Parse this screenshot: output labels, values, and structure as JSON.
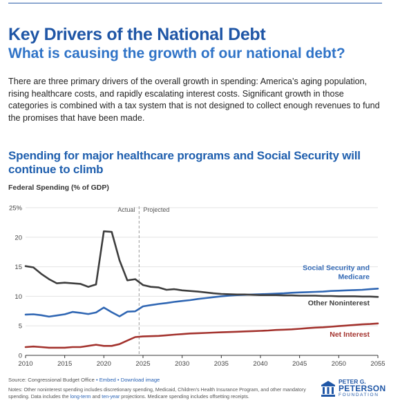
{
  "header": {
    "title": "Key Drivers of the National Debt",
    "subtitle": "What is causing the growth of our national debt?"
  },
  "intro": "There are three primary drivers of the overall growth in spending: America’s aging population, rising healthcare costs, and rapidly escalating interest costs. Significant growth in those categories is combined with a tax system that is not designed to collect enough revenues to fund the promises that have been made.",
  "chart_heading": "Spending for major healthcare programs and Social Security will continue to climb",
  "chart_data": {
    "type": "line",
    "ylabel": "Federal Spending (% of GDP)",
    "ylim": [
      0,
      25
    ],
    "xlim": [
      2010,
      2055
    ],
    "x_ticks": [
      "2010",
      "2015",
      "2020",
      "2025",
      "2030",
      "2035",
      "2040",
      "2045",
      "2050",
      "2055"
    ],
    "y_ticks": [
      "25%",
      "20",
      "15",
      "10",
      "5",
      "0"
    ],
    "divider_year": 2024.5,
    "divider_labels": {
      "left": "Actual",
      "right": "Projected"
    },
    "grid": "horizontal",
    "series": [
      {
        "name": "Social Security and Medicare",
        "label_lines": [
          "Social Security and",
          "Medicare"
        ],
        "color": "#2f66b3",
        "x": [
          2010,
          2011,
          2012,
          2013,
          2014,
          2015,
          2016,
          2017,
          2018,
          2019,
          2020,
          2021,
          2022,
          2023,
          2024,
          2025,
          2026,
          2027,
          2028,
          2029,
          2030,
          2031,
          2032,
          2033,
          2034,
          2035,
          2036,
          2037,
          2038,
          2039,
          2040,
          2041,
          2042,
          2043,
          2044,
          2045,
          2046,
          2047,
          2048,
          2049,
          2050,
          2051,
          2052,
          2053,
          2054,
          2055
        ],
        "values": [
          6.9,
          6.95,
          6.8,
          6.55,
          6.75,
          6.95,
          7.35,
          7.2,
          7.0,
          7.25,
          8.1,
          7.3,
          6.6,
          7.4,
          7.45,
          8.3,
          8.5,
          8.7,
          8.85,
          9.05,
          9.2,
          9.35,
          9.55,
          9.7,
          9.85,
          10.0,
          10.1,
          10.2,
          10.25,
          10.3,
          10.35,
          10.4,
          10.45,
          10.5,
          10.6,
          10.65,
          10.7,
          10.75,
          10.8,
          10.9,
          10.95,
          11.0,
          11.05,
          11.1,
          11.2,
          11.3
        ]
      },
      {
        "name": "Other Noninterest",
        "label_lines": [
          "Other Noninterest"
        ],
        "color": "#3d3d3d",
        "x": [
          2010,
          2011,
          2012,
          2013,
          2014,
          2015,
          2016,
          2017,
          2018,
          2019,
          2020,
          2021,
          2022,
          2023,
          2024,
          2025,
          2026,
          2027,
          2028,
          2029,
          2030,
          2031,
          2032,
          2033,
          2034,
          2035,
          2036,
          2037,
          2038,
          2039,
          2040,
          2041,
          2042,
          2043,
          2044,
          2045,
          2046,
          2047,
          2048,
          2049,
          2050,
          2051,
          2052,
          2053,
          2054,
          2055
        ],
        "values": [
          15.1,
          14.9,
          13.8,
          12.9,
          12.2,
          12.3,
          12.2,
          12.1,
          11.6,
          12.0,
          21.0,
          20.9,
          16.1,
          12.7,
          12.9,
          11.9,
          11.6,
          11.5,
          11.1,
          11.2,
          11.0,
          10.9,
          10.8,
          10.65,
          10.5,
          10.4,
          10.35,
          10.3,
          10.3,
          10.25,
          10.2,
          10.2,
          10.2,
          10.15,
          10.15,
          10.1,
          10.1,
          10.1,
          10.05,
          10.05,
          10.0,
          10.0,
          10.0,
          9.95,
          9.95,
          9.9
        ]
      },
      {
        "name": "Net Interest",
        "label_lines": [
          "Net Interest"
        ],
        "color": "#a3322d",
        "x": [
          2010,
          2011,
          2012,
          2013,
          2014,
          2015,
          2016,
          2017,
          2018,
          2019,
          2020,
          2021,
          2022,
          2023,
          2024,
          2025,
          2026,
          2027,
          2028,
          2029,
          2030,
          2031,
          2032,
          2033,
          2034,
          2035,
          2036,
          2037,
          2038,
          2039,
          2040,
          2041,
          2042,
          2043,
          2044,
          2045,
          2046,
          2047,
          2048,
          2049,
          2050,
          2051,
          2052,
          2053,
          2054,
          2055
        ],
        "values": [
          1.4,
          1.5,
          1.4,
          1.3,
          1.3,
          1.3,
          1.4,
          1.4,
          1.6,
          1.8,
          1.6,
          1.6,
          1.9,
          2.5,
          3.1,
          3.2,
          3.25,
          3.3,
          3.4,
          3.5,
          3.6,
          3.7,
          3.75,
          3.8,
          3.85,
          3.9,
          3.95,
          4.0,
          4.05,
          4.1,
          4.15,
          4.2,
          4.3,
          4.35,
          4.4,
          4.5,
          4.6,
          4.7,
          4.75,
          4.85,
          4.95,
          5.05,
          5.15,
          5.25,
          5.3,
          5.4
        ]
      }
    ]
  },
  "source": {
    "text": "Source: Congressional Budget Office",
    "embed": "Embed",
    "download": "Download image",
    "sep": "•"
  },
  "notes": {
    "part1": "Notes: Other noninterest spending includes discretionary spending, Medicaid, Children's Health Insurance Program, and other mandatory spending. Data includes the ",
    "link1": "long-term",
    "part2": " and ",
    "link2": "ten-year",
    "part3": " projections. Medicare spending includes offsetting receipts."
  },
  "logo": {
    "line1": "PETER G.",
    "line2": "PETERSON",
    "line3": "FOUNDATION"
  },
  "colors": {
    "brand": "#1f56a6",
    "accent": "#2f73c7"
  }
}
